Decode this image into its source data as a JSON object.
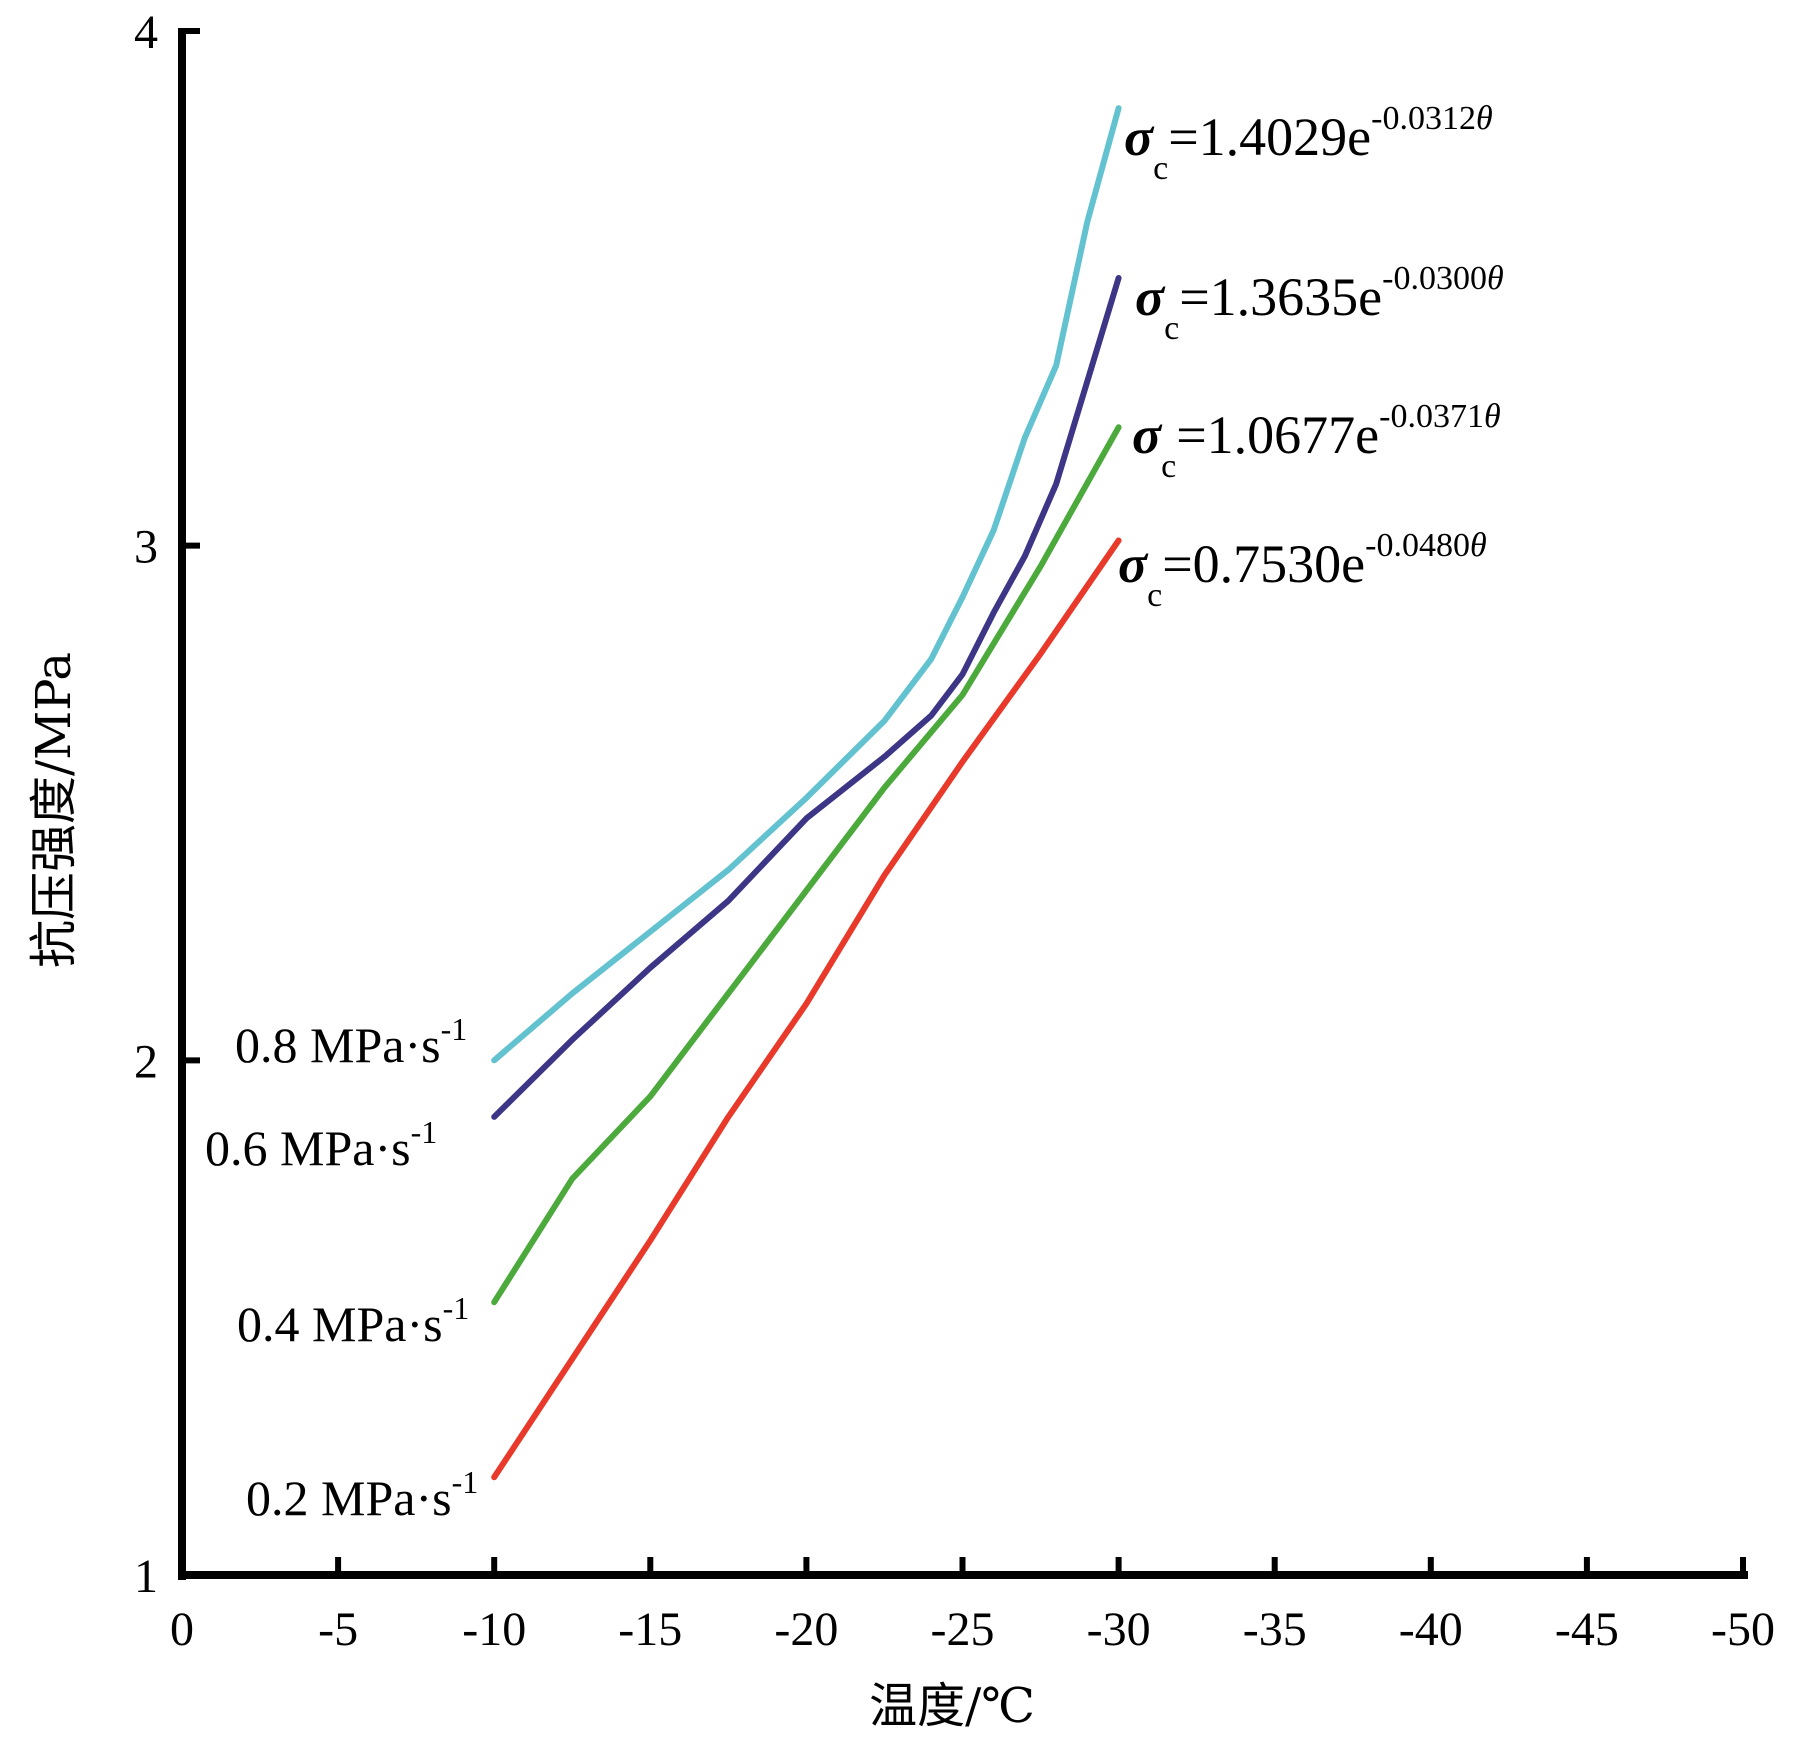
{
  "chart_data": {
    "type": "line",
    "title": "",
    "xlabel": "温度/℃",
    "ylabel": "抗压强度/MPa",
    "xlim": [
      0,
      -50
    ],
    "ylim": [
      1,
      4
    ],
    "grid": false,
    "x_ticks": [
      "0",
      "-5",
      "-10",
      "-15",
      "-20",
      "-25",
      "-30",
      "-35",
      "-40",
      "-45",
      "-50"
    ],
    "x_tick_values": [
      0,
      -5,
      -10,
      -15,
      -20,
      -25,
      -30,
      -35,
      -40,
      -45,
      -50
    ],
    "y_ticks": [
      "1",
      "2",
      "3",
      "4"
    ],
    "y_tick_values": [
      1,
      2,
      3,
      4
    ],
    "series": [
      {
        "name": "0.8 MPa·s-1",
        "label_main": "0.8 MPa·s",
        "label_sup": "-1",
        "color": "#62C2CF",
        "equation": {
          "sigma": "σ",
          "sub": "c",
          "body": "=1.4029e",
          "exp": "-0.0312",
          "theta": "θ"
        },
        "x": [
          -10,
          -12.5,
          -15,
          -17.5,
          -20,
          -22.5,
          -24,
          -25,
          -26,
          -27,
          -28,
          -29,
          -30
        ],
        "values": [
          2.0,
          2.13,
          2.25,
          2.37,
          2.51,
          2.66,
          2.78,
          2.9,
          3.03,
          3.21,
          3.35,
          3.63,
          3.85
        ]
      },
      {
        "name": "0.6 MPa·s-1",
        "label_main": "0.6 MPa·s",
        "label_sup": "-1",
        "color": "#3D3586",
        "equation": {
          "sigma": "σ",
          "sub": "c",
          "body": "=1.3635e",
          "exp": "-0.0300",
          "theta": "θ"
        },
        "x": [
          -10,
          -12.5,
          -15,
          -17.5,
          -20,
          -22.5,
          -24,
          -25,
          -26,
          -27,
          -28,
          -29,
          -30
        ],
        "values": [
          1.89,
          2.04,
          2.18,
          2.31,
          2.47,
          2.59,
          2.67,
          2.75,
          2.87,
          2.98,
          3.12,
          3.32,
          3.52
        ]
      },
      {
        "name": "0.4 MPa·s-1",
        "label_main": "0.4 MPa·s",
        "label_sup": "-1",
        "color": "#4BAA3B",
        "equation": {
          "sigma": "σ",
          "sub": "c",
          "body": "=1.0677e",
          "exp": "-0.0371",
          "theta": "θ"
        },
        "x": [
          -10,
          -12.5,
          -15,
          -17.5,
          -20,
          -22.5,
          -25,
          -27.5,
          -30
        ],
        "values": [
          1.53,
          1.77,
          1.93,
          2.13,
          2.33,
          2.53,
          2.71,
          2.96,
          3.23
        ]
      },
      {
        "name": "0.2 MPa·s-1",
        "label_main": "0.2 MPa·s",
        "label_sup": "-1",
        "color": "#E8392A",
        "equation": {
          "sigma": "σ",
          "sub": "c",
          "body": "=0.7530e",
          "exp": "-0.0480",
          "theta": "θ"
        },
        "x": [
          -10,
          -12.5,
          -15,
          -17.5,
          -20,
          -22.5,
          -25,
          -27.5,
          -30
        ],
        "values": [
          1.19,
          1.42,
          1.65,
          1.89,
          2.11,
          2.36,
          2.58,
          2.79,
          3.01
        ]
      }
    ]
  }
}
